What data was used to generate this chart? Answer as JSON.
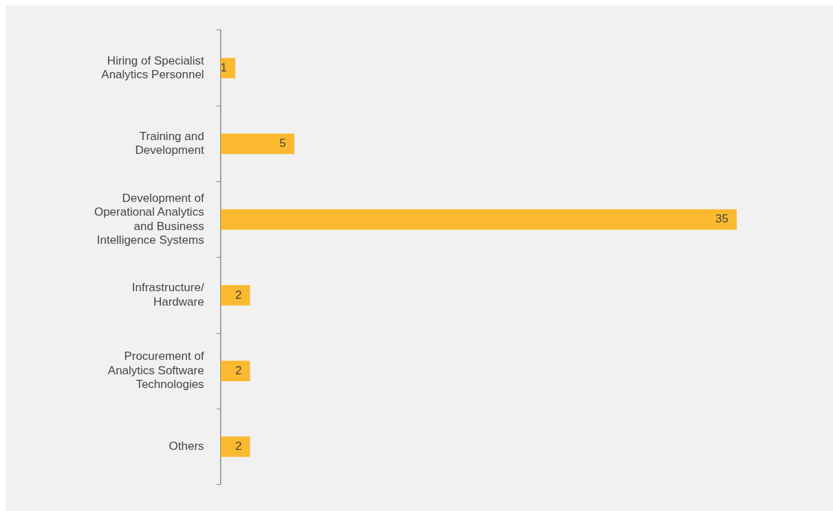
{
  "chart_data": {
    "type": "bar",
    "orientation": "horizontal",
    "categories": [
      "Hiring of Specialist Analytics Personnel",
      "Training and Development",
      "Development of Operational Analytics and Business Intelligence Systems",
      "Infrastructure/Hardware",
      "Procurement of Analytics Software Technologies",
      "Others"
    ],
    "values": [
      1,
      5,
      35,
      2,
      2,
      2
    ],
    "color": "#fbb92f",
    "data_labels": true,
    "grid": false,
    "legend": false
  }
}
